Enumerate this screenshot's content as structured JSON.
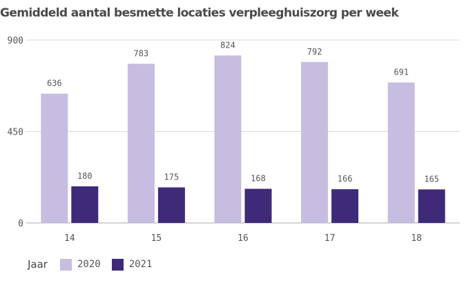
{
  "chart_data": {
    "type": "bar",
    "title": "Gemiddeld aantal besmette locaties verpleeghuiszorg per week",
    "xlabel": "",
    "ylabel": "",
    "categories": [
      "14",
      "15",
      "16",
      "17",
      "18"
    ],
    "series": [
      {
        "name": "2020",
        "color": "#c7bde0",
        "values": [
          636,
          783,
          824,
          792,
          691
        ]
      },
      {
        "name": "2021",
        "color": "#3f2a7a",
        "values": [
          180,
          175,
          168,
          166,
          165
        ]
      }
    ],
    "ylim": [
      0,
      900
    ],
    "yticks": [
      "900",
      "450",
      "0"
    ],
    "grid": true,
    "legend": {
      "title": "Jaar",
      "position": "bottom-left"
    }
  }
}
